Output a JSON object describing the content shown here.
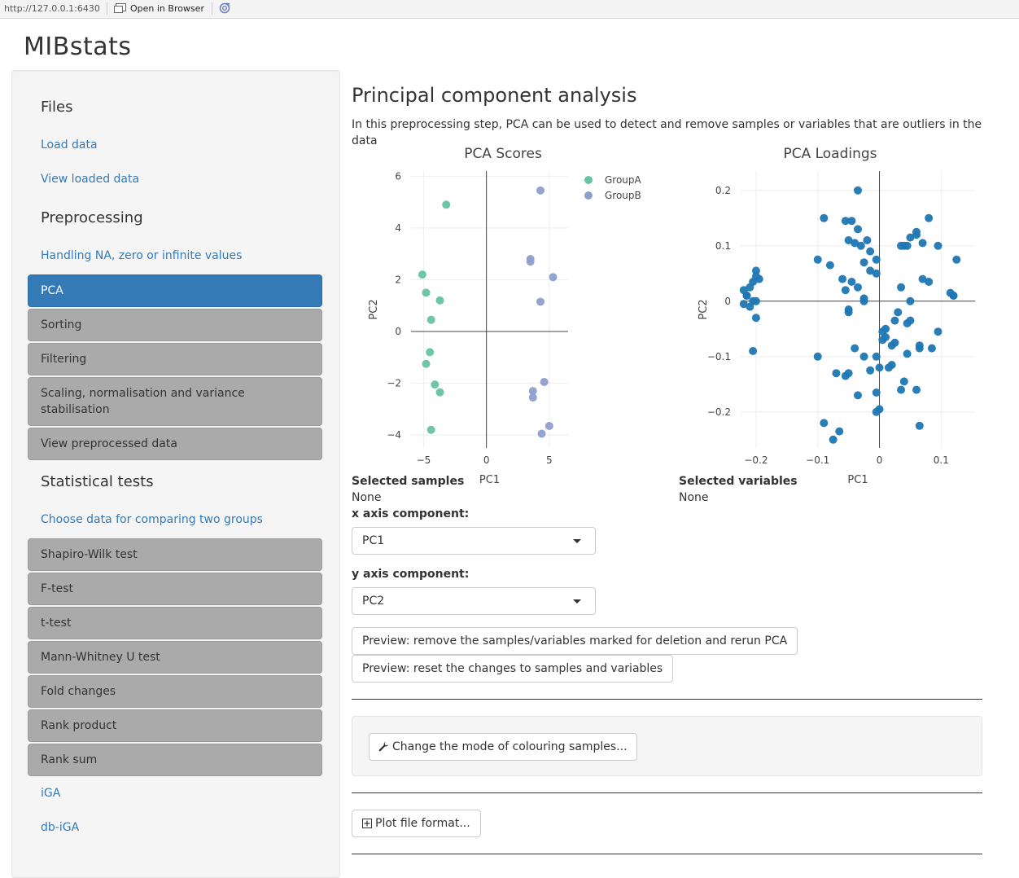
{
  "browser": {
    "url": "http://127.0.0.1:6430",
    "open_label": "Open in Browser"
  },
  "app": {
    "title": "MIBstats"
  },
  "sidebar": {
    "files_heading": "Files",
    "load_data": "Load data",
    "view_loaded": "View loaded data",
    "preprocessing_heading": "Preprocessing",
    "handling_na": "Handling NA, zero or infinite values",
    "pca": "PCA",
    "sorting": "Sorting",
    "filtering": "Filtering",
    "scaling": "Scaling, normalisation and variance stabilisation",
    "view_preprocessed": "View preprocessed data",
    "stat_heading": "Statistical tests",
    "choose_data": "Choose data for comparing two groups",
    "shapiro": "Shapiro-Wilk test",
    "ftest": "F-test",
    "ttest": "t-test",
    "mann": "Mann-Whitney U test",
    "fold": "Fold changes",
    "rank_product": "Rank product",
    "rank_sum": "Rank sum",
    "iga": "iGA",
    "dbiga": "db-iGA"
  },
  "main": {
    "heading": "Principal component analysis",
    "description": "In this preprocessing step, PCA can be used to detect and remove samples or variables that are outliers in the data",
    "selected_samples_label": "Selected samples",
    "selected_samples_value": "None",
    "selected_variables_label": "Selected variables",
    "selected_variables_value": "None",
    "x_axis_label": "x axis component:",
    "x_axis_value": "PC1",
    "y_axis_label": "y axis component:",
    "y_axis_value": "PC2",
    "rerun_button": "Preview: remove the samples/variables marked for deletion and rerun PCA",
    "reset_button": "Preview: reset the changes to samples and variables",
    "colour_button": "Change the mode of colouring samples...",
    "plot_format_button": "Plot file format..."
  },
  "colors": {
    "groupA": "#66c2a5",
    "groupB": "#8da0cb",
    "loadings": "#1f77b4",
    "accent": "#337ab7"
  },
  "chart_data": [
    {
      "type": "scatter",
      "title": "PCA Scores",
      "xlabel": "PC1",
      "ylabel": "PC2",
      "xlim": [
        -6,
        6.5
      ],
      "ylim": [
        -4.5,
        6.2
      ],
      "xticks": [
        -5,
        0,
        5
      ],
      "yticks": [
        -4,
        -2,
        0,
        2,
        4,
        6
      ],
      "xtick_labels": [
        "−5",
        "0",
        "5"
      ],
      "ytick_labels": [
        "−4",
        "−2",
        "0",
        "2",
        "4",
        "6"
      ],
      "legend": "top-right",
      "series": [
        {
          "name": "GroupA",
          "x": [
            -3.2,
            -5.1,
            -4.8,
            -3.7,
            -4.4,
            -4.5,
            -4.8,
            -4.1,
            -3.7,
            -4.4
          ],
          "y": [
            4.9,
            2.2,
            1.5,
            1.2,
            0.45,
            -0.8,
            -1.25,
            -2.05,
            -2.35,
            -3.8
          ]
        },
        {
          "name": "GroupB",
          "x": [
            4.3,
            3.5,
            3.5,
            5.3,
            4.3,
            4.6,
            3.7,
            3.7,
            5.0,
            4.4
          ],
          "y": [
            5.45,
            2.8,
            2.7,
            2.1,
            1.15,
            -1.95,
            -2.3,
            -2.55,
            -3.65,
            -3.95
          ]
        }
      ]
    },
    {
      "type": "scatter",
      "title": "PCA Loadings",
      "xlabel": "PC1",
      "ylabel": "PC2",
      "xlim": [
        -0.225,
        0.155
      ],
      "ylim": [
        -0.265,
        0.235
      ],
      "xticks": [
        -0.2,
        -0.1,
        0,
        0.1
      ],
      "yticks": [
        -0.2,
        -0.1,
        0,
        0.1,
        0.2
      ],
      "xtick_labels": [
        "−0.2",
        "−0.1",
        "0",
        "0.1"
      ],
      "ytick_labels": [
        "−0.2",
        "−0.1",
        "0",
        "0.1",
        "0.2"
      ],
      "series": [
        {
          "name": "",
          "x": [
            -0.2,
            -0.2,
            -0.205,
            -0.21,
            -0.22,
            -0.215,
            -0.205,
            -0.22,
            -0.21,
            -0.2,
            -0.205,
            -0.215,
            -0.2,
            -0.195,
            -0.035,
            -0.09,
            -0.055,
            -0.045,
            -0.035,
            -0.015,
            -0.02,
            -0.05,
            -0.04,
            -0.03,
            -0.005,
            -0.025,
            0.08,
            -0.1,
            -0.08,
            -0.06,
            -0.015,
            -0.005,
            -0.045,
            -0.035,
            -0.055,
            -0.025,
            -0.025,
            0.035,
            0.05,
            0.06,
            0.045,
            0.06,
            0.07,
            0.035,
            0.04,
            0.095,
            0.125,
            0.12,
            0.05,
            0.07,
            0.08,
            0.115,
            0.12,
            0.01,
            -0.05,
            0.005,
            -0.05,
            0.03,
            0.045,
            0.05,
            0.005,
            0.025,
            0.065,
            0.02,
            -0.005,
            0.015,
            0.02,
            0.045,
            0.095,
            0.085,
            0.065,
            0.01,
            0.025,
            -0.04,
            -0.05,
            0.0,
            0.04,
            0.035,
            -0.015,
            -0.07,
            -0.055,
            -0.035,
            -0.005,
            -0.005,
            0.0,
            0.06,
            -0.09,
            -0.065,
            -0.075,
            -0.1,
            -0.025,
            0.065
          ],
          "y": [
            0.055,
            0.045,
            0.035,
            0.025,
            0.02,
            0.01,
            0.0,
            -0.005,
            -0.01,
            -0.03,
            -0.09,
            0.01,
            0.0,
            0.04,
            0.2,
            0.15,
            0.145,
            0.145,
            0.13,
            0.09,
            0.11,
            0.11,
            0.105,
            0.1,
            0.075,
            0.07,
            0.15,
            0.075,
            0.065,
            0.04,
            0.055,
            0.05,
            0.035,
            0.025,
            0.02,
            0.005,
            0.0,
            0.025,
            0.115,
            0.125,
            0.1,
            0.12,
            0.105,
            0.1,
            0.1,
            0.1,
            0.075,
            0.01,
            0.0,
            0.04,
            0.035,
            0.015,
            0.01,
            -0.05,
            -0.02,
            -0.055,
            -0.015,
            -0.02,
            -0.04,
            -0.035,
            -0.07,
            -0.075,
            -0.08,
            -0.08,
            -0.1,
            -0.12,
            -0.115,
            -0.095,
            -0.055,
            -0.085,
            -0.085,
            -0.065,
            -0.035,
            -0.085,
            -0.13,
            -0.12,
            -0.145,
            -0.16,
            -0.125,
            -0.13,
            -0.135,
            -0.17,
            -0.165,
            -0.2,
            -0.195,
            -0.16,
            -0.22,
            -0.235,
            -0.25,
            -0.1,
            -0.1,
            -0.225
          ]
        }
      ]
    }
  ]
}
